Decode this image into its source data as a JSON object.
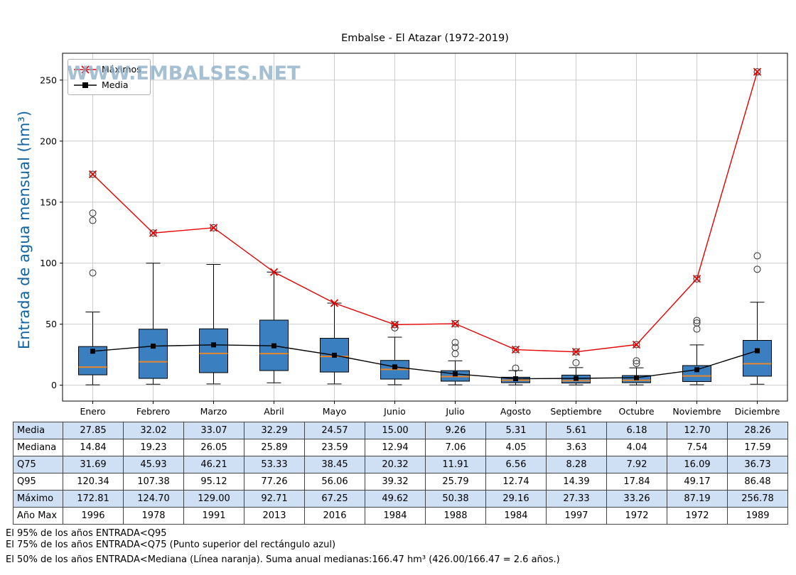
{
  "watermark": "WWW.EMBALSES.NET",
  "legend": [
    {
      "label": "Máximos",
      "color": "#e60000",
      "marker": "x"
    },
    {
      "label": "Media",
      "color": "#000000",
      "marker": "square"
    }
  ],
  "chart_data": {
    "type": "boxplot",
    "title": "Embalse - El Atazar (1972-2019)",
    "ylabel": "Entrada de agua mensual (hm³)",
    "categories": [
      "Enero",
      "Febrero",
      "Marzo",
      "Abril",
      "Mayo",
      "Junio",
      "Julio",
      "Agosto",
      "Septiembre",
      "Octubre",
      "Noviembre",
      "Diciembre"
    ],
    "ylim": [
      -13,
      272
    ],
    "yticks": [
      0,
      50,
      100,
      150,
      200,
      250
    ],
    "grid": true,
    "legend_position": "upper left",
    "box": {
      "median": [
        14.84,
        19.23,
        26.05,
        25.89,
        23.59,
        12.94,
        7.06,
        4.05,
        3.63,
        4.04,
        7.54,
        17.59
      ],
      "q1": [
        8.5,
        5.6,
        10.3,
        12.0,
        10.8,
        5.0,
        3.3,
        2.1,
        1.8,
        2.1,
        3.0,
        7.4
      ],
      "q3": [
        31.69,
        45.93,
        46.21,
        53.33,
        38.45,
        20.32,
        11.91,
        6.56,
        8.28,
        7.92,
        16.09,
        36.73
      ],
      "whisker_low": [
        0.3,
        0.8,
        1.0,
        2.0,
        1.0,
        0.4,
        0.3,
        0.2,
        0.2,
        0.2,
        0.4,
        0.8
      ],
      "whisker_high": [
        60,
        100,
        99,
        92.71,
        67.25,
        39.32,
        20,
        12,
        14.4,
        14.3,
        33,
        68
      ],
      "outliers": [
        [
          92,
          135,
          141,
          172.81
        ],
        [
          124.7
        ],
        [
          129.0
        ],
        [],
        [],
        [
          47,
          49.62
        ],
        [
          25.8,
          31,
          35,
          50.38
        ],
        [
          14,
          29.16
        ],
        [
          18.4,
          27.33
        ],
        [
          17.84,
          20,
          33.26
        ],
        [
          46,
          51,
          53,
          87.19
        ],
        [
          95,
          106,
          256.78
        ]
      ]
    },
    "series": [
      {
        "name": "Máximos",
        "color": "#e60000",
        "marker": "x",
        "values": [
          172.81,
          124.7,
          129.0,
          92.71,
          67.25,
          49.62,
          50.38,
          29.16,
          27.33,
          33.26,
          87.19,
          256.78
        ]
      },
      {
        "name": "Media",
        "color": "#000000",
        "marker": "square",
        "values": [
          27.85,
          32.02,
          33.07,
          32.29,
          24.57,
          15.0,
          9.26,
          5.31,
          5.61,
          6.18,
          12.7,
          28.26
        ]
      }
    ],
    "colors": {
      "box_fill": "#3a7fbf",
      "box_edge": "#000000",
      "median": "#e8862d",
      "maximos": "#e60000",
      "media": "#000000",
      "grid": "#cccccc",
      "axis_label": "#1464a3",
      "watermark": "#8fb0c9",
      "table_alt_row": "#cfe0f4"
    }
  },
  "table": {
    "rows": [
      {
        "label": "Media",
        "values": [
          "27.85",
          "32.02",
          "33.07",
          "32.29",
          "24.57",
          "15.00",
          "9.26",
          "5.31",
          "5.61",
          "6.18",
          "12.70",
          "28.26"
        ]
      },
      {
        "label": "Mediana",
        "values": [
          "14.84",
          "19.23",
          "26.05",
          "25.89",
          "23.59",
          "12.94",
          "7.06",
          "4.05",
          "3.63",
          "4.04",
          "7.54",
          "17.59"
        ]
      },
      {
        "label": "Q75",
        "values": [
          "31.69",
          "45.93",
          "46.21",
          "53.33",
          "38.45",
          "20.32",
          "11.91",
          "6.56",
          "8.28",
          "7.92",
          "16.09",
          "36.73"
        ]
      },
      {
        "label": "Q95",
        "values": [
          "120.34",
          "107.38",
          "95.12",
          "77.26",
          "56.06",
          "39.32",
          "25.79",
          "12.74",
          "14.39",
          "17.84",
          "49.17",
          "86.48"
        ]
      },
      {
        "label": "Máximo",
        "values": [
          "172.81",
          "124.70",
          "129.00",
          "92.71",
          "67.25",
          "49.62",
          "50.38",
          "29.16",
          "27.33",
          "33.26",
          "87.19",
          "256.78"
        ]
      },
      {
        "label": "Año Max",
        "values": [
          "1996",
          "1978",
          "1991",
          "2013",
          "2016",
          "1984",
          "1988",
          "1984",
          "1997",
          "1972",
          "1972",
          "1989"
        ]
      }
    ]
  },
  "footnotes": [
    "El 95% de los años ENTRADA<Q95",
    "El 75% de los años ENTRADA<Q75 (Punto superior del rectángulo azul)",
    "El 50% de los años ENTRADA<Mediana (Línea naranja). Suma anual medianas:166.47 hm³ (426.00/166.47 = 2.6 años.)"
  ]
}
